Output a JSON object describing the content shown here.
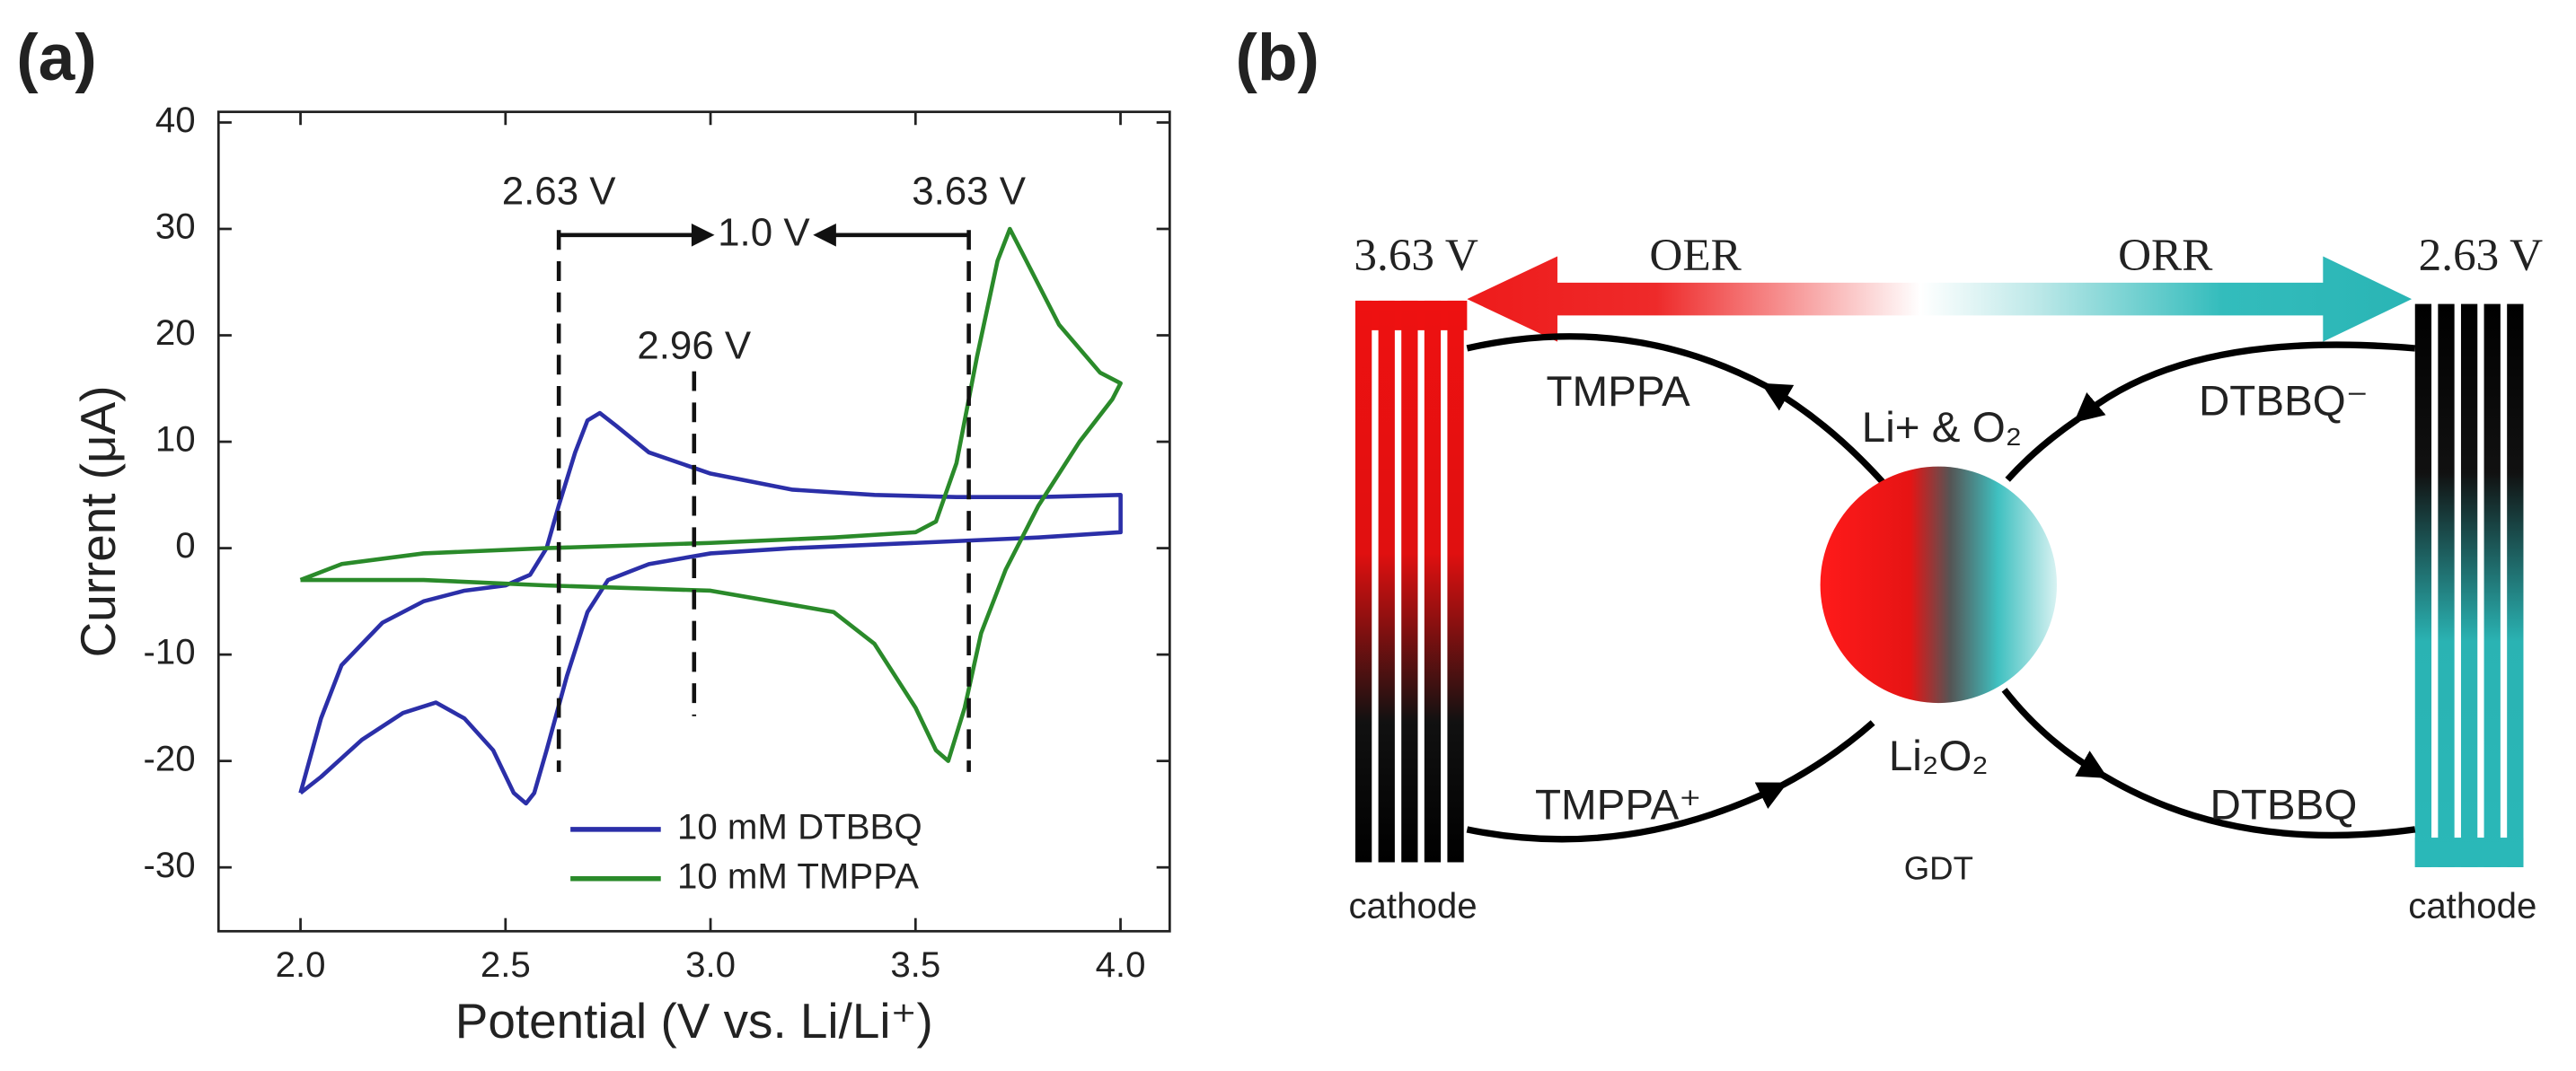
{
  "chart_data": {
    "type": "line",
    "panel_label": "(a)",
    "xlabel": "Potential (V vs. Li/Li⁺)",
    "ylabel": "Current (μA)",
    "xlim": [
      1.8,
      4.12
    ],
    "ylim": [
      -36,
      41
    ],
    "xticks": [
      {
        "value": 2,
        "label": "2.0"
      },
      {
        "value": 2.5,
        "label": "2.5"
      },
      {
        "value": 3,
        "label": "3.0"
      },
      {
        "value": 3.5,
        "label": "3.5"
      },
      {
        "value": 4,
        "label": "4.0"
      }
    ],
    "yticks": [
      -30,
      -20,
      -10,
      0,
      10,
      20,
      30,
      40
    ],
    "legend": "lower center",
    "markers": [
      {
        "label": "2.63 V",
        "x": 2.63
      },
      {
        "label": "2.96 V",
        "x": 2.96
      },
      {
        "label": "3.63 V",
        "x": 3.63
      }
    ],
    "span_label": "1.0 V",
    "series": [
      {
        "name": "10 mM DTBBQ",
        "color": "#2b2fa8",
        "x": [
          2.0,
          2.05,
          2.1,
          2.2,
          2.3,
          2.4,
          2.5,
          2.56,
          2.6,
          2.63,
          2.67,
          2.7,
          2.73,
          2.77,
          2.85,
          3.0,
          3.2,
          3.4,
          3.6,
          3.8,
          4.0,
          4.0,
          3.8,
          3.5,
          3.2,
          3.0,
          2.85,
          2.75,
          2.7,
          2.65,
          2.6,
          2.57,
          2.55,
          2.52,
          2.47,
          2.4,
          2.33,
          2.25,
          2.15,
          2.05,
          2.0
        ],
        "values": [
          -23,
          -16,
          -11,
          -7,
          -5,
          -4,
          -3.5,
          -2.5,
          0,
          4,
          9,
          12,
          12.7,
          11.5,
          9,
          7,
          5.5,
          5,
          4.8,
          4.8,
          5,
          1.5,
          1,
          0.5,
          0,
          -0.5,
          -1.5,
          -3,
          -6,
          -12,
          -19,
          -23,
          -24,
          -23,
          -19,
          -16,
          -14.5,
          -15.5,
          -18,
          -21.5,
          -23
        ]
      },
      {
        "name": "10 mM TMPPA",
        "color": "#2a8a2a",
        "x": [
          2.0,
          2.1,
          2.3,
          2.6,
          3.0,
          3.3,
          3.5,
          3.55,
          3.6,
          3.65,
          3.7,
          3.73,
          3.77,
          3.85,
          3.95,
          4.0,
          3.98,
          3.9,
          3.8,
          3.72,
          3.66,
          3.62,
          3.58,
          3.55,
          3.5,
          3.4,
          3.3,
          3.0,
          2.6,
          2.3,
          2.0
        ],
        "values": [
          -3,
          -1.5,
          -0.5,
          0,
          0.5,
          1,
          1.5,
          2.5,
          8,
          18,
          27,
          30,
          27,
          21,
          16.5,
          15.5,
          14,
          10,
          4,
          -2,
          -8,
          -15,
          -20,
          -19,
          -15,
          -9,
          -6,
          -4,
          -3.5,
          -3,
          -3
        ]
      }
    ]
  },
  "diagram": {
    "panel_label": "(b)",
    "left_potential": "3.63 V",
    "right_potential": "2.63 V",
    "oer": "OER",
    "orr": "ORR",
    "top_left": "TMPPA",
    "top_center": "Li+ & O₂",
    "top_right": "DTBBQ⁻",
    "bottom_left": "TMPPA⁺",
    "bottom_center": "Li₂O₂",
    "center_caption": "GDT",
    "bottom_right": "DTBBQ",
    "left_electrode": "cathode",
    "right_electrode": "cathode"
  }
}
